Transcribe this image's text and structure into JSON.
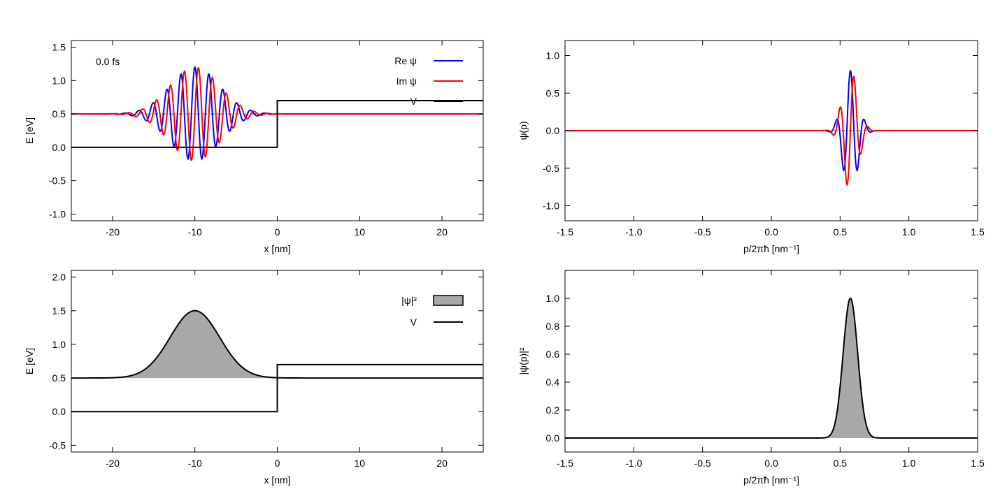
{
  "time_label": "0.0 fs",
  "colors": {
    "re": "#0000ff",
    "im": "#ff0000",
    "potential": "#000000",
    "fill": "#a8a8a8"
  },
  "chart_data": [
    {
      "id": "tl",
      "type": "line",
      "xlabel": "x [nm]",
      "ylabel": "E [eV]",
      "xlim": [
        -25,
        25
      ],
      "ylim": [
        -1.1,
        1.6
      ],
      "xticks": [
        -20,
        -10,
        0,
        10,
        20
      ],
      "xtick_labels": [
        "-20",
        "-10",
        "0",
        "10",
        "20"
      ],
      "yticks": [
        -1.0,
        -0.5,
        0.0,
        0.5,
        1.0,
        1.5
      ],
      "ytick_labels": [
        "-1.0",
        "-0.5",
        "0.0",
        "0.5",
        "1.0",
        "1.5"
      ],
      "grid": false,
      "legend_position": "top-right",
      "wave": {
        "center": -10,
        "width": 3,
        "baseline": 0.5,
        "amplitude": 0.7,
        "wavenumber": 3.7
      },
      "series": [
        {
          "name": "Re ψ",
          "role": "re"
        },
        {
          "name": "Im ψ",
          "role": "im"
        },
        {
          "name": "V",
          "role": "potential",
          "x": [
            -25,
            0,
            0,
            25
          ],
          "y": [
            0,
            0,
            0.7,
            0.7
          ]
        }
      ]
    },
    {
      "id": "tr",
      "type": "line",
      "xlabel": "p/2πħ [nm⁻¹]",
      "ylabel": "ψ(p)",
      "xlim": [
        -1.5,
        1.5
      ],
      "ylim": [
        -1.2,
        1.2
      ],
      "xticks": [
        -1.5,
        -1.0,
        -0.5,
        0.0,
        0.5,
        1.0,
        1.5
      ],
      "xtick_labels": [
        "-1.5",
        "-1.0",
        "-0.5",
        "0.0",
        "0.5",
        "1.0",
        "1.5"
      ],
      "yticks": [
        -1.0,
        -0.5,
        0.0,
        0.5,
        1.0
      ],
      "ytick_labels": [
        "-1.0",
        "-0.5",
        "0.0",
        "0.5",
        "1.0"
      ],
      "grid": false,
      "wave": {
        "center": 0.575,
        "width": 0.055,
        "baseline": 0,
        "amplitude": 0.8,
        "wavenumber": 60
      },
      "series": [
        {
          "role": "re"
        },
        {
          "role": "im"
        }
      ]
    },
    {
      "id": "bl",
      "type": "area",
      "xlabel": "x [nm]",
      "ylabel": "E [eV]",
      "xlim": [
        -25,
        25
      ],
      "ylim": [
        -0.6,
        2.1
      ],
      "xticks": [
        -20,
        -10,
        0,
        10,
        20
      ],
      "xtick_labels": [
        "-20",
        "-10",
        "0",
        "10",
        "20"
      ],
      "yticks": [
        -0.5,
        0.0,
        0.5,
        1.0,
        1.5,
        2.0
      ],
      "ytick_labels": [
        "-0.5",
        "0.0",
        "0.5",
        "1.0",
        "1.5",
        "2.0"
      ],
      "grid": false,
      "legend_position": "top-right",
      "gauss": {
        "center": -10,
        "width": 3,
        "baseline": 0.5,
        "peak": 1.5
      },
      "series": [
        {
          "name": "|ψ|²",
          "role": "density"
        },
        {
          "name": "V",
          "role": "potential",
          "x": [
            -25,
            0,
            0,
            25
          ],
          "y": [
            0,
            0,
            0.7,
            0.7
          ]
        }
      ]
    },
    {
      "id": "br",
      "type": "area",
      "xlabel": "p/2πħ [nm⁻¹]",
      "ylabel": "|ψ(p)|²",
      "xlim": [
        -1.5,
        1.5
      ],
      "ylim": [
        -0.1,
        1.2
      ],
      "xticks": [
        -1.5,
        -1.0,
        -0.5,
        0.0,
        0.5,
        1.0,
        1.5
      ],
      "xtick_labels": [
        "-1.5",
        "-1.0",
        "-0.5",
        "0.0",
        "0.5",
        "1.0",
        "1.5"
      ],
      "yticks": [
        0.0,
        0.2,
        0.4,
        0.6,
        0.8,
        1.0
      ],
      "ytick_labels": [
        "0.0",
        "0.2",
        "0.4",
        "0.6",
        "0.8",
        "1.0"
      ],
      "grid": false,
      "gauss": {
        "center": 0.575,
        "width": 0.053,
        "baseline": 0,
        "peak": 1.0
      },
      "series": [
        {
          "role": "density"
        }
      ]
    }
  ]
}
